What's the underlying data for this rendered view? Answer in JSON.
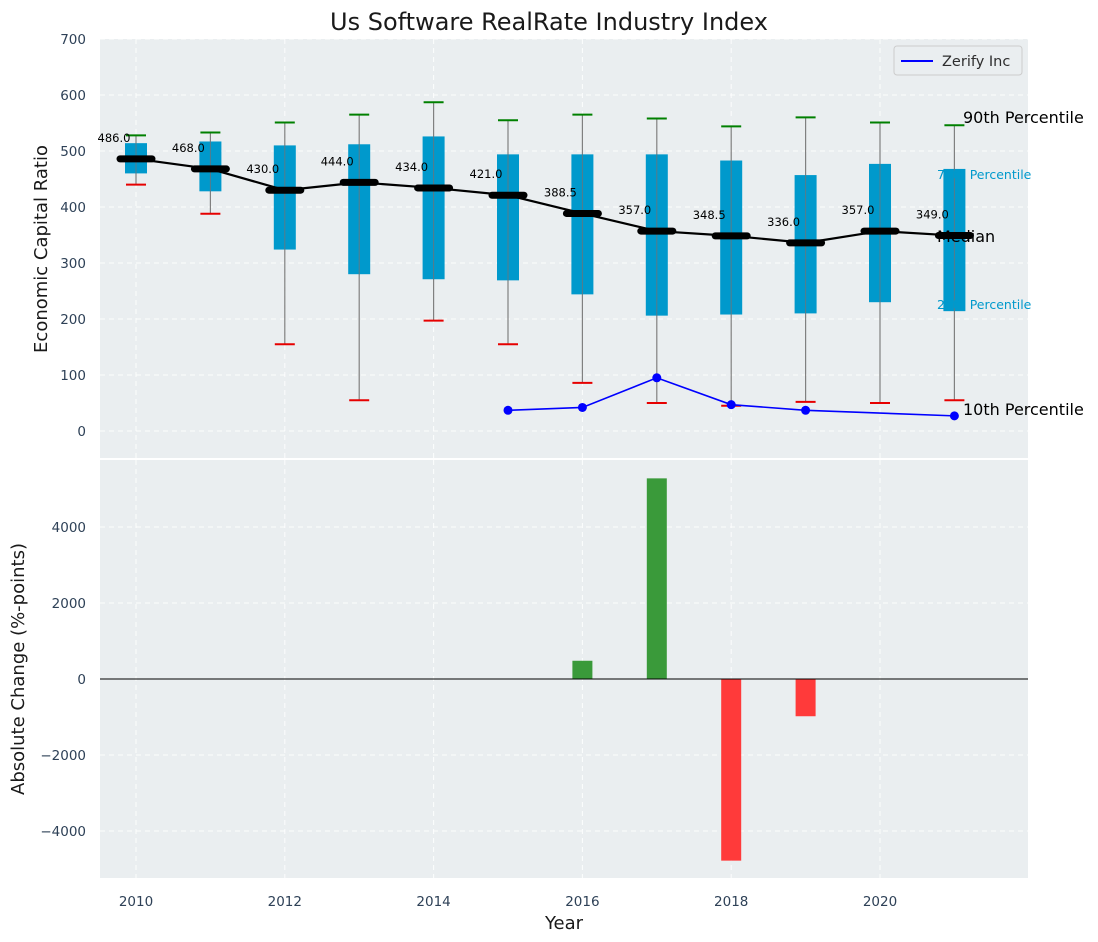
{
  "chart_data": [
    {
      "type": "box",
      "title": "Us Software RealRate Industry Index",
      "ylabel": "Economic Capital Ratio",
      "ylim": [
        -50,
        700
      ],
      "yticks": [
        0,
        100,
        200,
        300,
        400,
        500,
        600,
        700
      ],
      "grid": true,
      "years": [
        2010,
        2011,
        2012,
        2013,
        2014,
        2015,
        2016,
        2017,
        2018,
        2019,
        2020,
        2021
      ],
      "p10": [
        440,
        388,
        155,
        55,
        197,
        155,
        86,
        50,
        45,
        52,
        50,
        55
      ],
      "p25": [
        460,
        428,
        324,
        280,
        271,
        269,
        244,
        206,
        208,
        210,
        230,
        214
      ],
      "median": [
        486.0,
        468.0,
        430.0,
        444.0,
        434.0,
        421.0,
        388.5,
        357.0,
        348.5,
        336.0,
        357.0,
        349.0
      ],
      "p75": [
        514,
        517,
        510,
        512,
        526,
        494,
        494,
        494,
        483,
        457,
        477,
        468
      ],
      "p90": [
        528,
        533,
        551,
        565,
        587,
        555,
        565,
        558,
        544,
        560,
        551,
        546
      ],
      "median_labels": [
        "486.0",
        "468.0",
        "430.0",
        "444.0",
        "434.0",
        "421.0",
        "388.5",
        "357.0",
        "348.5",
        "336.0",
        "357.0",
        "349.0"
      ],
      "company_series": {
        "name": "Zerify Inc",
        "x": [
          2015,
          2016,
          2017,
          2018,
          2019,
          2021
        ],
        "y": [
          37,
          42,
          95,
          47,
          37,
          27
        ]
      },
      "annotations": {
        "p90": "90th Percentile",
        "p75": "75th Percentile",
        "median": "Median",
        "p25": "25th Percentile",
        "p10": "10th Percentile"
      },
      "legend": {
        "position": "top-right",
        "entries": [
          "Zerify Inc"
        ]
      }
    },
    {
      "type": "bar",
      "xlabel": "Year",
      "ylabel": "Absolute Change (%-points)",
      "ylim": [
        -5300,
        5700
      ],
      "yticks": [
        -4000,
        -2000,
        0,
        2000,
        4000
      ],
      "xticks": [
        2010,
        2012,
        2014,
        2016,
        2018,
        2020
      ],
      "grid": true,
      "x": [
        2016,
        2017,
        2018,
        2019
      ],
      "values": [
        480,
        5280,
        -4780,
        -980
      ]
    }
  ],
  "colors": {
    "box": "#0099cc",
    "median_line": "#000000",
    "whisker": "#808080",
    "p90_cap": "#008000",
    "p10_cap": "#e60000",
    "company": "#0000ff",
    "bar_positive": "#3a9a3a",
    "bar_negative": "#ff3a3a",
    "plot_bg": "#eaeef0",
    "label_25_75": "#0099cc"
  }
}
